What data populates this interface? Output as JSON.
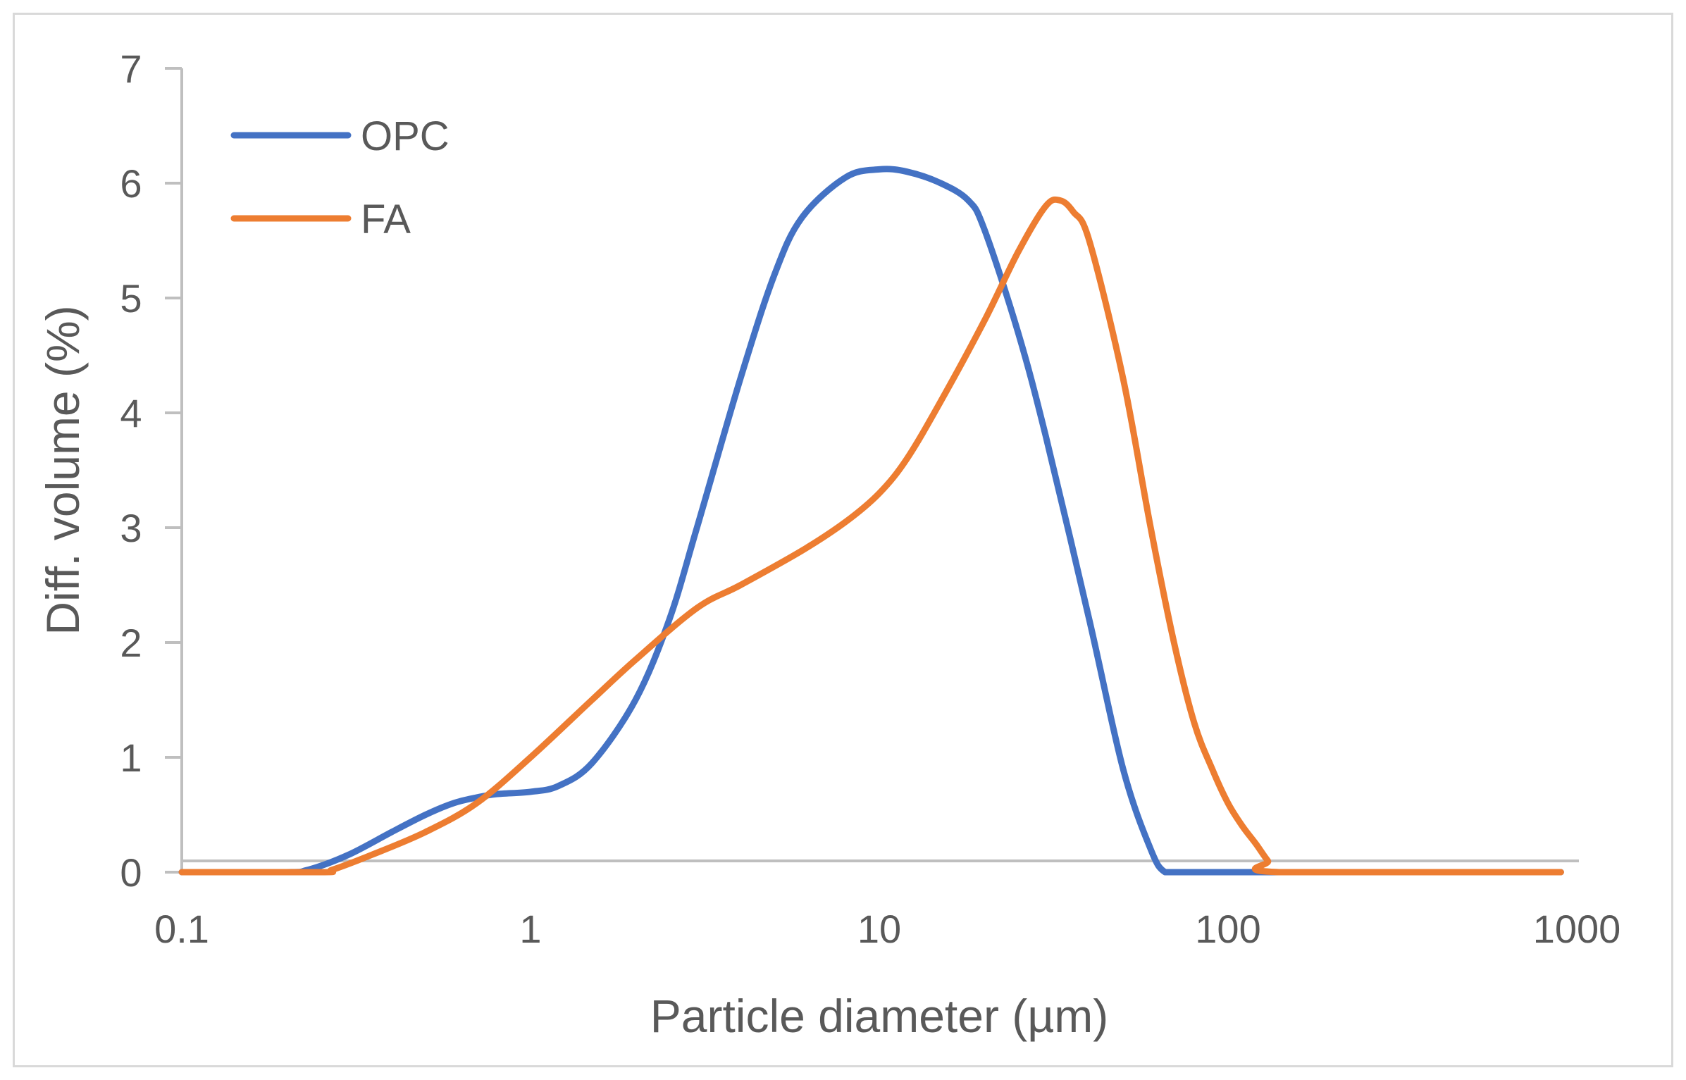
{
  "chart_data": {
    "type": "line",
    "title": "",
    "xlabel": "Particle diameter (µm)",
    "ylabel": "Diff. volume (%)",
    "xscale": "log",
    "xlim": [
      0.1,
      1000
    ],
    "ylim": [
      0,
      7
    ],
    "xticks": [
      0.1,
      1,
      10,
      100,
      1000
    ],
    "xtick_labels": [
      "0.1",
      "1",
      "10",
      "100",
      "1000"
    ],
    "yticks": [
      0,
      1,
      2,
      3,
      4,
      5,
      6,
      7
    ],
    "ytick_labels": [
      "0",
      "1",
      "2",
      "3",
      "4",
      "5",
      "6",
      "7"
    ],
    "legend_position": "top-left",
    "series": [
      {
        "name": "OPC",
        "color": "#4472c4",
        "x": [
          0.1,
          0.2,
          0.23,
          0.3,
          0.4,
          0.5,
          0.6,
          0.7,
          0.8,
          1.0,
          1.2,
          1.5,
          2.0,
          2.5,
          3.0,
          4.0,
          5.0,
          6.0,
          8.0,
          10.0,
          12.0,
          15.0,
          18.0,
          20.0,
          25.0,
          30.0,
          40.0,
          50.0,
          60.0,
          66.0,
          75.0,
          150.0,
          900.0
        ],
        "values": [
          0,
          0,
          0.02,
          0.15,
          0.35,
          0.5,
          0.6,
          0.65,
          0.68,
          0.7,
          0.75,
          0.95,
          1.5,
          2.2,
          3.0,
          4.3,
          5.2,
          5.7,
          6.05,
          6.12,
          6.1,
          6.0,
          5.85,
          5.6,
          4.7,
          3.8,
          2.2,
          0.9,
          0.2,
          0,
          0,
          0,
          0
        ]
      },
      {
        "name": "FA",
        "color": "#ed7d31",
        "x": [
          0.1,
          0.25,
          0.27,
          0.35,
          0.5,
          0.7,
          1.0,
          1.5,
          2.0,
          3.0,
          4.0,
          6.0,
          8.0,
          10.0,
          12.0,
          15.0,
          20.0,
          25.0,
          30.0,
          33.0,
          36.0,
          40.0,
          50.0,
          60.0,
          70.0,
          80.0,
          90.0,
          100.0,
          110.0,
          120.0,
          130.0,
          140.0,
          900.0
        ],
        "values": [
          0,
          0,
          0.02,
          0.15,
          0.35,
          0.6,
          1.0,
          1.5,
          1.85,
          2.3,
          2.5,
          2.8,
          3.05,
          3.3,
          3.6,
          4.1,
          4.8,
          5.4,
          5.8,
          5.85,
          5.75,
          5.5,
          4.3,
          3.0,
          2.0,
          1.3,
          0.9,
          0.6,
          0.4,
          0.25,
          0.1,
          0,
          0
        ]
      }
    ]
  }
}
